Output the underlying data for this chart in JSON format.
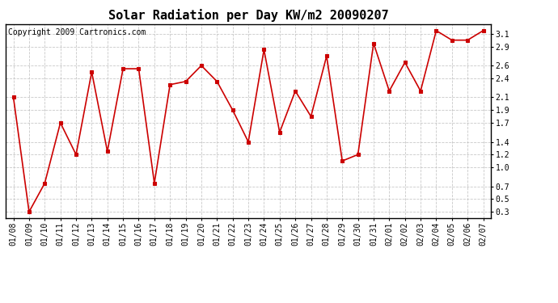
{
  "title": "Solar Radiation per Day KW/m2 20090207",
  "copyright": "Copyright 2009 Cartronics.com",
  "dates": [
    "01/08",
    "01/09",
    "01/10",
    "01/11",
    "01/12",
    "01/13",
    "01/14",
    "01/15",
    "01/16",
    "01/17",
    "01/18",
    "01/19",
    "01/20",
    "01/21",
    "01/22",
    "01/23",
    "01/24",
    "01/25",
    "01/26",
    "01/27",
    "01/28",
    "01/29",
    "01/30",
    "01/31",
    "02/01",
    "02/02",
    "02/03",
    "02/04",
    "02/05",
    "02/06",
    "02/07"
  ],
  "values": [
    2.1,
    0.3,
    0.75,
    1.7,
    1.2,
    2.5,
    1.25,
    2.55,
    2.55,
    0.75,
    2.3,
    2.35,
    2.6,
    2.35,
    1.9,
    1.4,
    2.85,
    1.55,
    2.2,
    1.8,
    2.75,
    1.1,
    1.2,
    2.95,
    2.2,
    2.65,
    2.2,
    3.15,
    3.0,
    3.0,
    3.15
  ],
  "line_color": "#cc0000",
  "marker": "s",
  "marker_color": "#cc0000",
  "marker_size": 3,
  "ylim": [
    0.2,
    3.25
  ],
  "yticks": [
    0.3,
    0.5,
    0.7,
    1.0,
    1.2,
    1.4,
    1.7,
    1.9,
    2.1,
    2.4,
    2.6,
    2.9,
    3.1
  ],
  "grid_color": "#bbbbbb",
  "grid_style": "--",
  "bg_color": "#ffffff",
  "title_fontsize": 11,
  "copyright_fontsize": 7,
  "tick_fontsize": 7
}
